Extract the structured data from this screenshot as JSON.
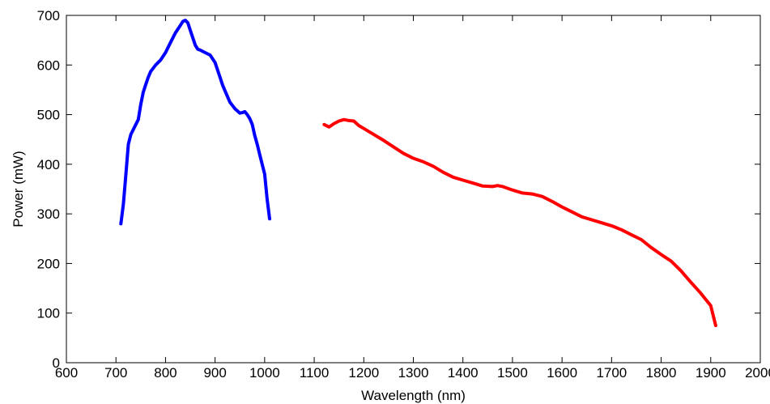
{
  "chart_data": {
    "type": "line",
    "title": "",
    "xlabel": "Wavelength (nm)",
    "ylabel": "Power (mW)",
    "xlim": [
      600,
      2000
    ],
    "ylim": [
      0,
      700
    ],
    "grid": false,
    "legend": "none",
    "x_ticks": [
      600,
      700,
      800,
      900,
      1000,
      1100,
      1200,
      1300,
      1400,
      1500,
      1600,
      1700,
      1800,
      1900,
      2000
    ],
    "y_ticks": [
      0,
      100,
      200,
      300,
      400,
      500,
      600,
      700
    ],
    "series": [
      {
        "color": "#0000ff",
        "x": [
          710,
          715,
          720,
          725,
          730,
          740,
          745,
          750,
          755,
          760,
          765,
          770,
          780,
          790,
          800,
          810,
          820,
          830,
          835,
          840,
          845,
          850,
          855,
          860,
          865,
          870,
          880,
          890,
          900,
          905,
          910,
          915,
          920,
          930,
          940,
          950,
          955,
          960,
          965,
          970,
          975,
          980,
          985,
          990,
          995,
          1000,
          1005,
          1010
        ],
        "y": [
          280,
          320,
          380,
          440,
          460,
          480,
          490,
          520,
          545,
          560,
          575,
          587,
          600,
          610,
          625,
          645,
          665,
          680,
          688,
          690,
          685,
          670,
          655,
          640,
          632,
          630,
          625,
          620,
          605,
          590,
          575,
          560,
          548,
          525,
          512,
          503,
          504,
          506,
          500,
          492,
          480,
          458,
          440,
          420,
          400,
          380,
          330,
          290
        ]
      },
      {
        "color": "#ff0000",
        "x": [
          1120,
          1130,
          1140,
          1150,
          1160,
          1170,
          1180,
          1190,
          1200,
          1220,
          1240,
          1260,
          1280,
          1300,
          1320,
          1340,
          1360,
          1380,
          1400,
          1420,
          1440,
          1460,
          1470,
          1480,
          1500,
          1520,
          1540,
          1560,
          1580,
          1600,
          1620,
          1640,
          1660,
          1680,
          1700,
          1720,
          1740,
          1760,
          1780,
          1800,
          1820,
          1840,
          1860,
          1880,
          1900,
          1910
        ],
        "y": [
          480,
          475,
          482,
          487,
          490,
          488,
          487,
          478,
          472,
          460,
          448,
          435,
          422,
          412,
          405,
          396,
          384,
          374,
          368,
          362,
          356,
          355,
          357,
          355,
          348,
          342,
          340,
          335,
          325,
          314,
          304,
          294,
          288,
          282,
          276,
          268,
          258,
          248,
          232,
          218,
          205,
          185,
          162,
          140,
          115,
          75
        ]
      }
    ]
  }
}
